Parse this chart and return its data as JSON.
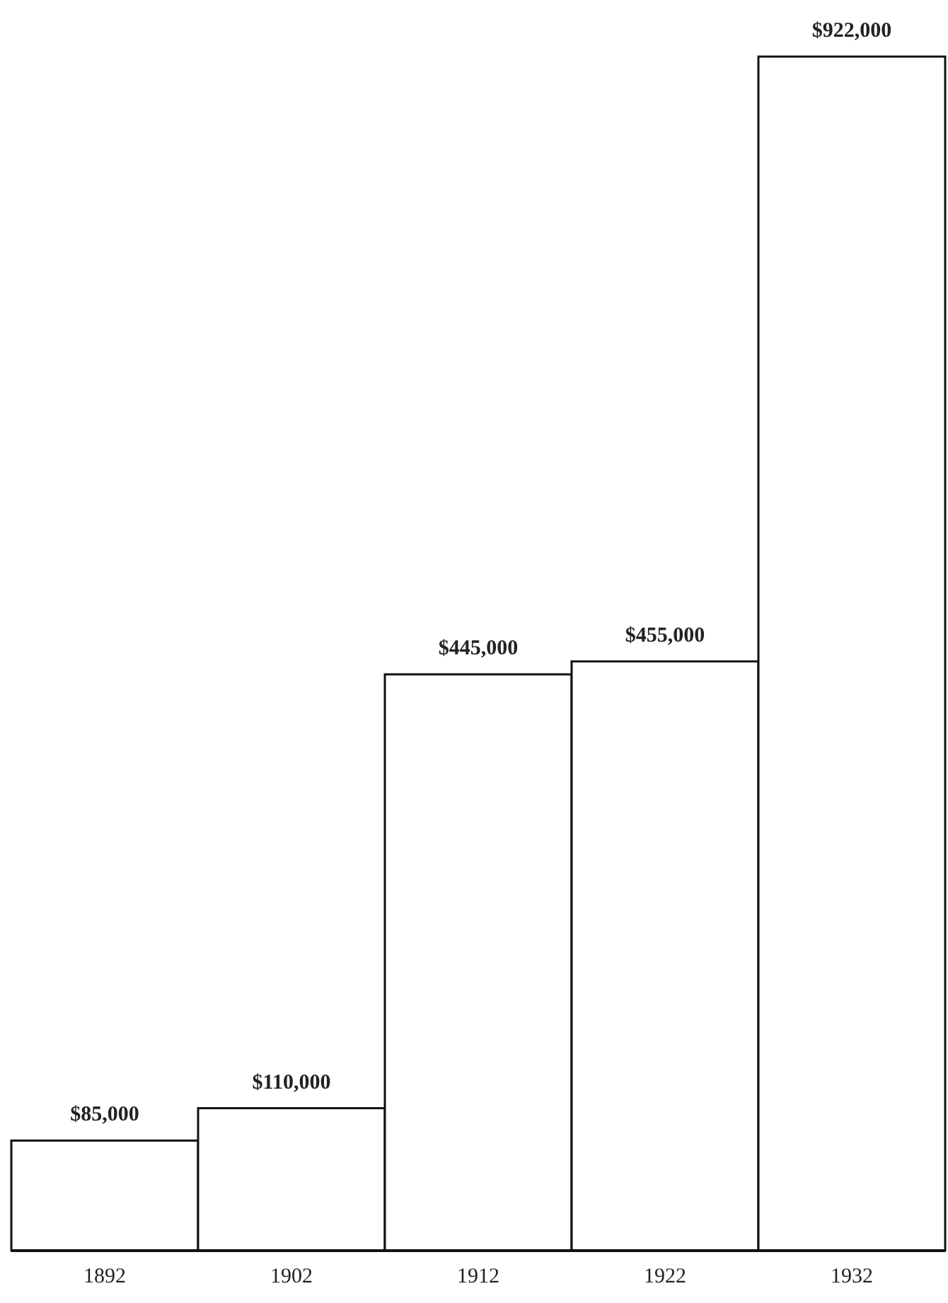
{
  "chart_data": {
    "type": "bar",
    "categories": [
      "1892",
      "1902",
      "1912",
      "1922",
      "1932"
    ],
    "values": [
      85000,
      110000,
      445000,
      455000,
      922000
    ],
    "value_labels": [
      "$85,000",
      "$110,000",
      "$445,000",
      "$455,000",
      "$922,000"
    ],
    "color": "#ffffff"
  }
}
